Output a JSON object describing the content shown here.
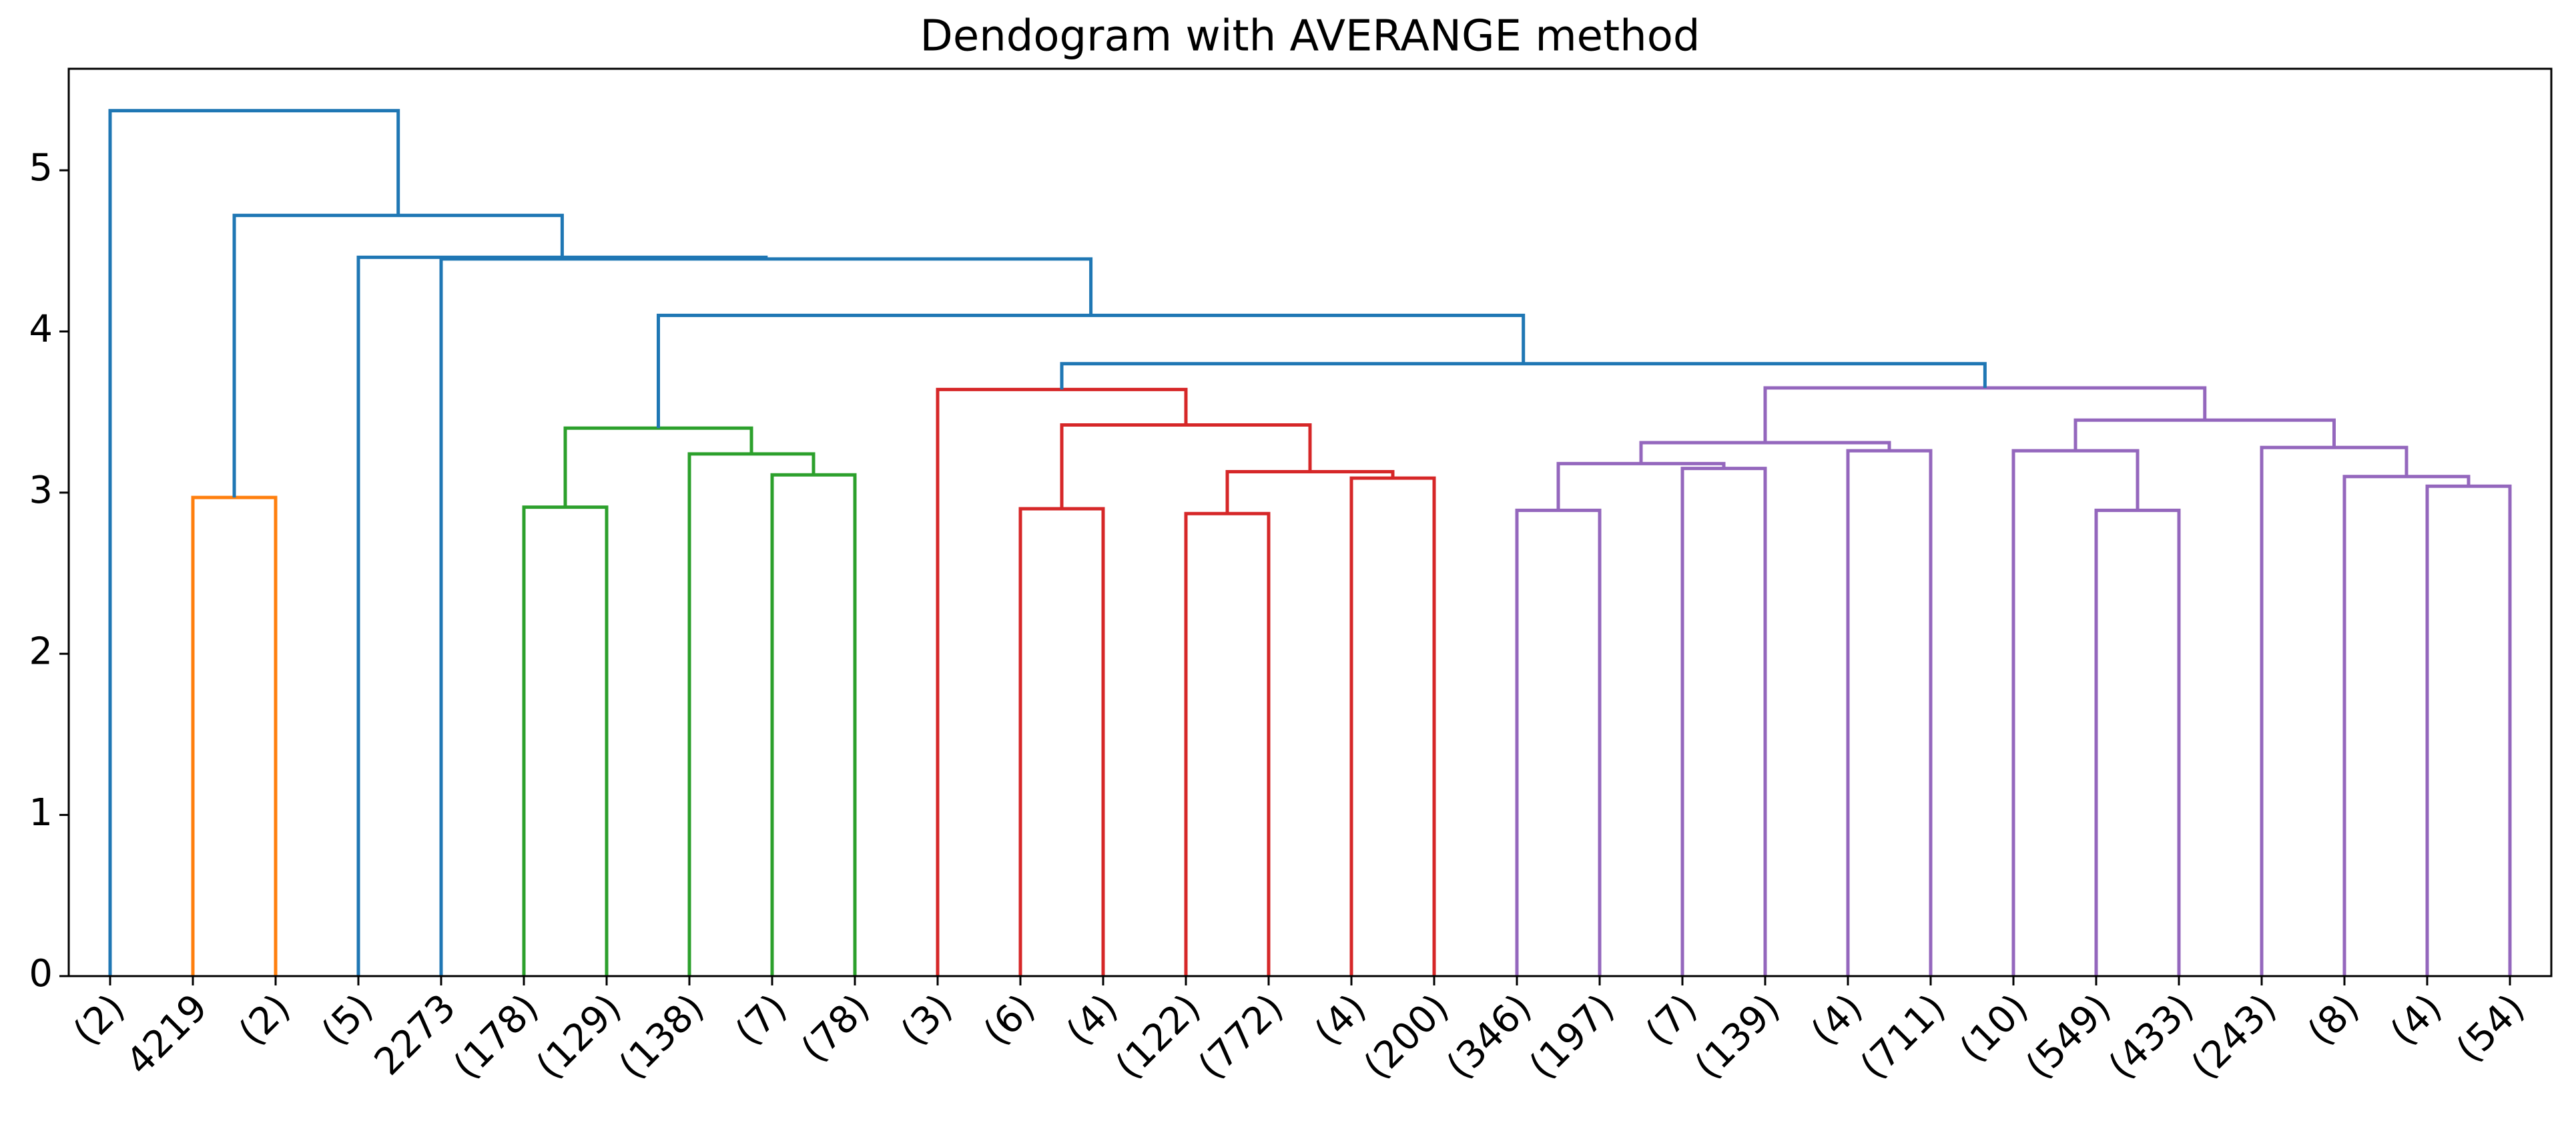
{
  "chart_data": {
    "type": "dendrogram",
    "title": "Dendogram with AVERANGE method",
    "leaves": [
      "(2)",
      "4219",
      "(2)",
      "(5)",
      "2273",
      "(178)",
      "(129)",
      "(138)",
      "(7)",
      "(78)",
      "(3)",
      "(6)",
      "(4)",
      "(122)",
      "(772)",
      "(4)",
      "(200)",
      "(346)",
      "(197)",
      "(7)",
      "(139)",
      "(4)",
      "(711)",
      "(10)",
      "(549)",
      "(433)",
      "(243)",
      "(8)",
      "(4)",
      "(54)"
    ],
    "links": [
      {
        "children": [
          1,
          2
        ],
        "height": 2.97,
        "color": "#ff7f0e"
      },
      {
        "children": [
          5,
          6
        ],
        "height": 2.91,
        "color": "#2ca02c"
      },
      {
        "children": [
          8,
          9
        ],
        "height": 3.11,
        "color": "#2ca02c"
      },
      {
        "children": [
          7,
          32
        ],
        "height": 3.24,
        "color": "#2ca02c"
      },
      {
        "children": [
          31,
          33
        ],
        "height": 3.4,
        "color": "#2ca02c"
      },
      {
        "children": [
          11,
          12
        ],
        "height": 2.9,
        "color": "#d62728"
      },
      {
        "children": [
          13,
          14
        ],
        "height": 2.87,
        "color": "#d62728"
      },
      {
        "children": [
          15,
          16
        ],
        "height": 3.09,
        "color": "#d62728"
      },
      {
        "children": [
          36,
          37
        ],
        "height": 3.13,
        "color": "#d62728"
      },
      {
        "children": [
          35,
          38
        ],
        "height": 3.42,
        "color": "#d62728"
      },
      {
        "children": [
          10,
          39
        ],
        "height": 3.64,
        "color": "#d62728"
      },
      {
        "children": [
          17,
          18
        ],
        "height": 2.89,
        "color": "#9467bd"
      },
      {
        "children": [
          19,
          20
        ],
        "height": 3.15,
        "color": "#9467bd"
      },
      {
        "children": [
          41,
          42
        ],
        "height": 3.18,
        "color": "#9467bd"
      },
      {
        "children": [
          21,
          22
        ],
        "height": 3.26,
        "color": "#9467bd"
      },
      {
        "children": [
          43,
          44
        ],
        "height": 3.31,
        "color": "#9467bd"
      },
      {
        "children": [
          24,
          25
        ],
        "height": 2.89,
        "color": "#9467bd"
      },
      {
        "children": [
          23,
          46
        ],
        "height": 3.26,
        "color": "#9467bd"
      },
      {
        "children": [
          28,
          29
        ],
        "height": 3.04,
        "color": "#9467bd"
      },
      {
        "children": [
          27,
          48
        ],
        "height": 3.1,
        "color": "#9467bd"
      },
      {
        "children": [
          26,
          49
        ],
        "height": 3.28,
        "color": "#9467bd"
      },
      {
        "children": [
          47,
          50
        ],
        "height": 3.45,
        "color": "#9467bd"
      },
      {
        "children": [
          45,
          51
        ],
        "height": 3.65,
        "color": "#9467bd"
      },
      {
        "children": [
          40,
          52
        ],
        "height": 3.8,
        "color": "#1f77b4"
      },
      {
        "children": [
          34,
          53
        ],
        "height": 4.1,
        "color": "#1f77b4"
      },
      {
        "children": [
          4,
          54
        ],
        "height": 4.45,
        "color": "#1f77b4"
      },
      {
        "children": [
          3,
          55
        ],
        "height": 4.46,
        "color": "#1f77b4"
      },
      {
        "children": [
          30,
          56
        ],
        "height": 4.72,
        "color": "#1f77b4"
      },
      {
        "children": [
          0,
          57
        ],
        "height": 5.37,
        "color": "#1f77b4"
      }
    ],
    "ylim": [
      0,
      5.63
    ],
    "yticks": [
      0,
      1,
      2,
      3,
      4,
      5
    ]
  }
}
